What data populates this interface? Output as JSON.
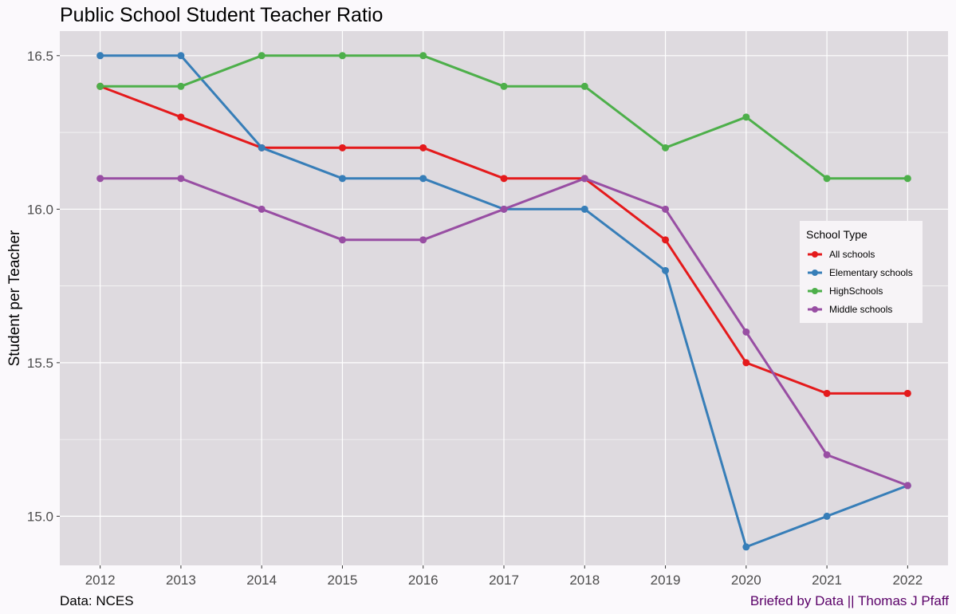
{
  "chart_data": {
    "type": "line",
    "title": "Public School Student Teacher Ratio",
    "xlabel": "",
    "ylabel": "Student per Teacher",
    "x": [
      2012,
      2013,
      2014,
      2015,
      2016,
      2017,
      2018,
      2019,
      2020,
      2021,
      2022
    ],
    "xlim": [
      2011.5,
      2022.5
    ],
    "ylim": [
      14.84,
      16.58
    ],
    "yticks": [
      15.0,
      15.5,
      16.0,
      16.5
    ],
    "ytick_labels": [
      "15.0",
      "15.5",
      "16.0",
      "16.5"
    ],
    "grid": true,
    "legend": {
      "title": "School Type",
      "position": "right"
    },
    "series": [
      {
        "name": "All schools",
        "color": "#e41a1c",
        "values": [
          16.4,
          16.3,
          16.2,
          16.2,
          16.2,
          16.1,
          16.1,
          15.9,
          15.5,
          15.4,
          15.4
        ]
      },
      {
        "name": "Elementary schools",
        "color": "#377eb8",
        "values": [
          16.5,
          16.5,
          16.2,
          16.1,
          16.1,
          16.0,
          16.0,
          15.8,
          14.9,
          15.0,
          15.1
        ]
      },
      {
        "name": "HighSchools",
        "color": "#4daf4a",
        "values": [
          16.4,
          16.4,
          16.5,
          16.5,
          16.5,
          16.4,
          16.4,
          16.2,
          16.3,
          16.1,
          16.1
        ]
      },
      {
        "name": "Middle schools",
        "color": "#984ea3",
        "values": [
          16.1,
          16.1,
          16.0,
          15.9,
          15.9,
          16.0,
          16.1,
          16.0,
          15.6,
          15.2,
          15.1
        ]
      }
    ]
  },
  "caption_left": "Data: NCES",
  "caption_right": "Briefed by Data || Thomas J Pfaff",
  "colors": {
    "panel_bg": "#dedadf",
    "grid": "#ffffff",
    "page_bg": "#fbf9fc",
    "caption_right": "#5a0068"
  }
}
